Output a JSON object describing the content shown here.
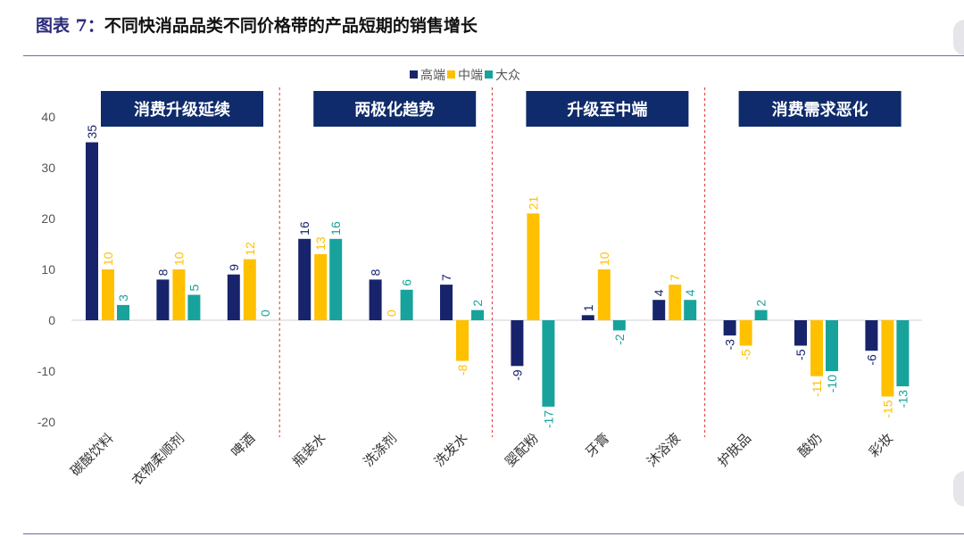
{
  "title": {
    "prefix": "图表 7：",
    "text": "不同快消品品类不同价格带的产品短期的销售增长"
  },
  "chart_data": {
    "type": "bar",
    "title": "",
    "categories": [
      "碳酸饮料",
      "衣物柔顺剂",
      "啤酒",
      "瓶装水",
      "洗涤剂",
      "洗发水",
      "婴配粉",
      "牙膏",
      "沐浴液",
      "护肤品",
      "酸奶",
      "彩妆"
    ],
    "series": [
      {
        "name": "高端",
        "color": "#17246b",
        "values": [
          35,
          8,
          9,
          16,
          8,
          7,
          -9,
          1,
          4,
          -3,
          -5,
          -6
        ]
      },
      {
        "name": "中端",
        "color": "#ffc000",
        "values": [
          10,
          10,
          12,
          13,
          0,
          -8,
          21,
          10,
          7,
          -5,
          -11,
          -15
        ]
      },
      {
        "name": "大众",
        "color": "#17a39b",
        "values": [
          3,
          5,
          0,
          16,
          6,
          2,
          -17,
          -2,
          4,
          2,
          -10,
          -13
        ]
      }
    ],
    "ylim": [
      -20,
      40
    ],
    "yticks": [
      -20,
      -10,
      0,
      10,
      20,
      30,
      40
    ],
    "grid": false,
    "legend": "top-center",
    "groups": [
      {
        "label": "消费升级延续",
        "start": 0,
        "end": 2
      },
      {
        "label": "两极化趋势",
        "start": 3,
        "end": 5
      },
      {
        "label": "升级至中端",
        "start": 6,
        "end": 8
      },
      {
        "label": "消费需求恶化",
        "start": 9,
        "end": 11
      }
    ],
    "group_box_color": "#0f2b6b"
  }
}
